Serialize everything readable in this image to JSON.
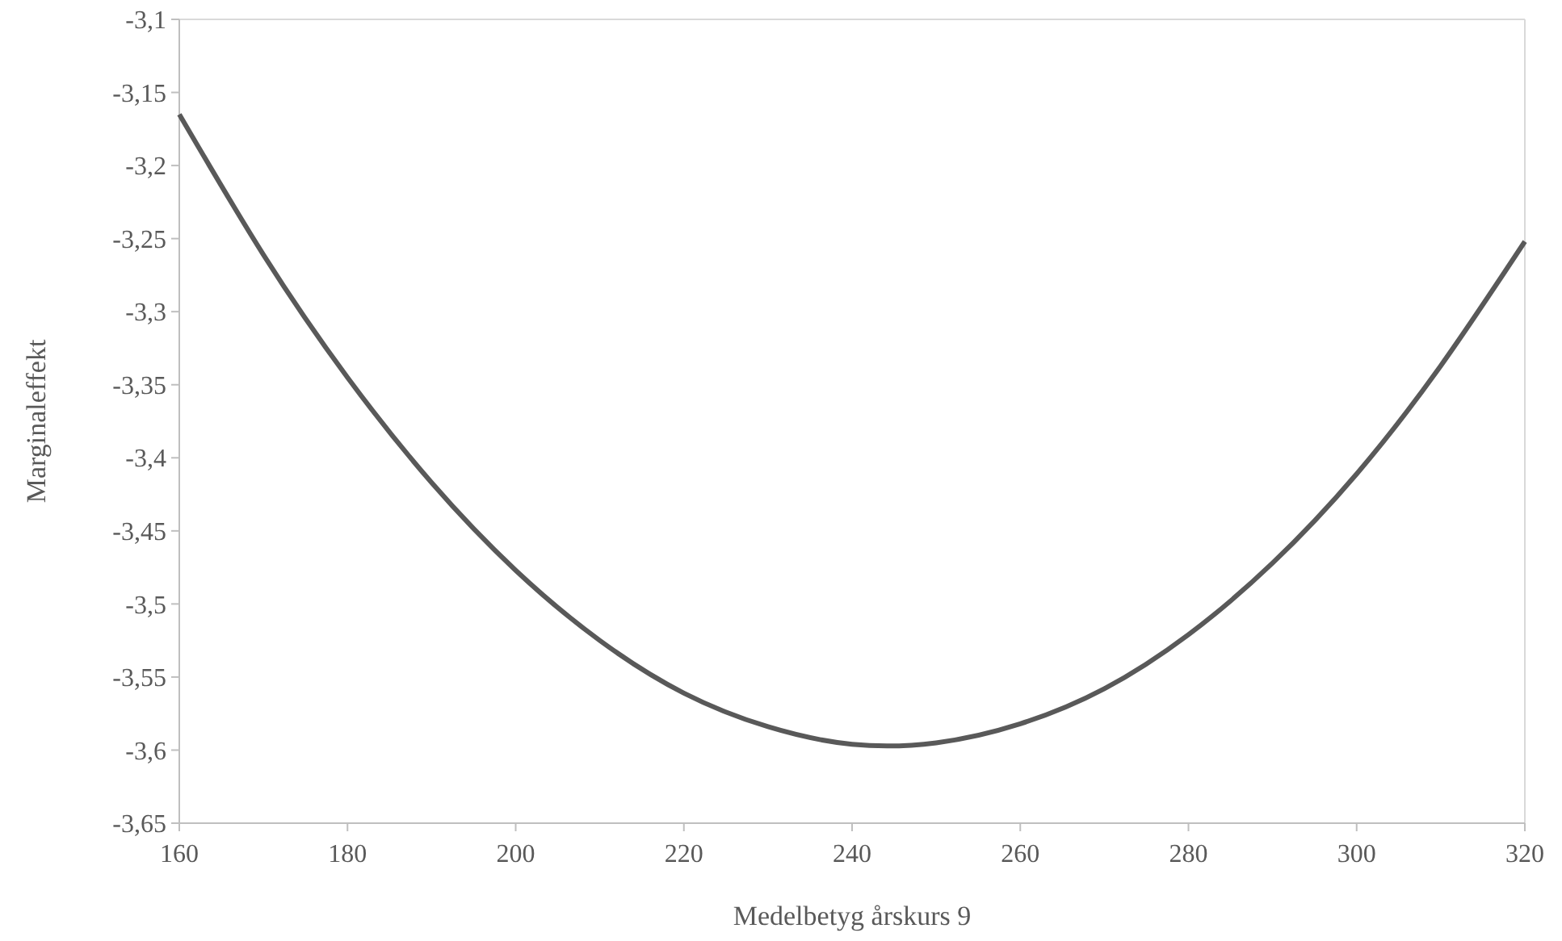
{
  "chart_data": {
    "type": "line",
    "xlabel": "Medelbetyg årskurs 9",
    "ylabel": "Marginaleffekt",
    "x": [
      160,
      170,
      180,
      190,
      200,
      210,
      220,
      230,
      240,
      250,
      260,
      270,
      280,
      290,
      300,
      310,
      320
    ],
    "series": [
      {
        "color": "#595959",
        "values": [
          -3.165,
          -3.261,
          -3.345,
          -3.417,
          -3.477,
          -3.525,
          -3.561,
          -3.584,
          -3.596,
          -3.595,
          -3.582,
          -3.558,
          -3.521,
          -3.472,
          -3.411,
          -3.337,
          -3.252
        ]
      }
    ],
    "xlim": [
      160,
      320
    ],
    "xticks": [
      160,
      180,
      200,
      220,
      240,
      260,
      280,
      300,
      320
    ],
    "ylim": [
      -3.65,
      -3.1
    ],
    "yticks": [
      {
        "value": -3.65,
        "label": "-3,65"
      },
      {
        "value": -3.6,
        "label": "-3,6"
      },
      {
        "value": -3.55,
        "label": "-3,55"
      },
      {
        "value": -3.5,
        "label": "-3,5"
      },
      {
        "value": -3.45,
        "label": "-3,45"
      },
      {
        "value": -3.4,
        "label": "-3,4"
      },
      {
        "value": -3.35,
        "label": "-3,35"
      },
      {
        "value": -3.3,
        "label": "-3,3"
      },
      {
        "value": -3.25,
        "label": "-3,25"
      },
      {
        "value": -3.2,
        "label": "-3,2"
      },
      {
        "value": -3.15,
        "label": "-3,15"
      },
      {
        "value": -3.1,
        "label": "-3,1"
      }
    ],
    "grid": false,
    "marker": "none",
    "line_style": "solid"
  }
}
